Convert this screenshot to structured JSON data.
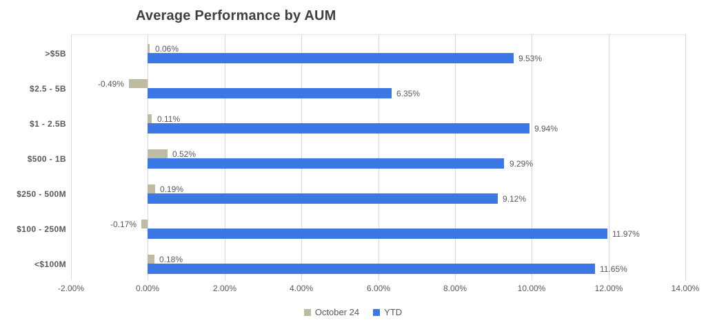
{
  "chart_data": {
    "type": "bar",
    "orientation": "horizontal",
    "title": "Average Performance by AUM",
    "categories": [
      ">$5B",
      "$2.5 - 5B",
      "$1 - 2.5B",
      "$500 - 1B",
      "$250 - 500M",
      "$100 - 250M",
      "<$100M"
    ],
    "series": [
      {
        "name": "October 24",
        "color": "#bfbba2",
        "values": [
          0.06,
          -0.49,
          0.11,
          0.52,
          0.19,
          -0.17,
          0.18
        ],
        "labels": [
          "0.06%",
          "-0.49%",
          "0.11%",
          "0.52%",
          "0.19%",
          "-0.17%",
          "0.18%"
        ]
      },
      {
        "name": "YTD",
        "color": "#3b78e5",
        "values": [
          9.53,
          6.35,
          9.94,
          9.29,
          9.12,
          11.97,
          11.65
        ],
        "labels": [
          "9.53%",
          "6.35%",
          "9.94%",
          "9.29%",
          "9.12%",
          "11.97%",
          "11.65%"
        ]
      }
    ],
    "x_axis": {
      "min": -2,
      "max": 14,
      "step": 2,
      "tick_labels": [
        "-2.00%",
        "0.00%",
        "2.00%",
        "4.00%",
        "6.00%",
        "8.00%",
        "10.00%",
        "12.00%",
        "14.00%"
      ]
    },
    "legend": {
      "position": "bottom",
      "items": [
        "October 24",
        "YTD"
      ]
    },
    "grid": "vertical",
    "colors": {
      "grid": "#d9d9d7",
      "text": "#595959",
      "title": "#3f3f3f",
      "background": "#ffffff"
    }
  }
}
